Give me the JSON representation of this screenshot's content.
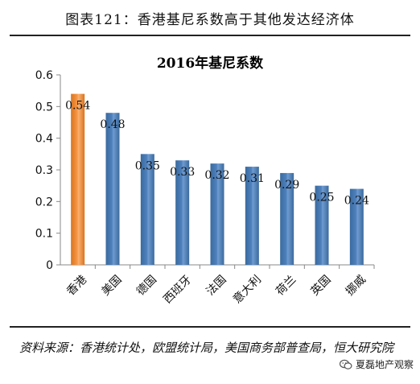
{
  "caption": "图表121：香港基尼系数高于其他发达经济体",
  "source_note": "资料来源：香港统计处，欧盟统计局，美国商务部普查局，恒大研究院",
  "watermark": {
    "text": "夏磊地产观察",
    "icon": "wechat-icon"
  },
  "colors": {
    "highlight": "#f79646",
    "bar": "#4f81bd"
  },
  "chart_data": {
    "type": "bar",
    "title": "2016年基尼系数",
    "categories": [
      "香港",
      "美国",
      "德国",
      "西班牙",
      "法国",
      "意大利",
      "荷兰",
      "英国",
      "挪威"
    ],
    "values": [
      0.54,
      0.48,
      0.35,
      0.33,
      0.32,
      0.31,
      0.29,
      0.25,
      0.24
    ],
    "data_labels": [
      "0.54",
      "0.48",
      "0.35",
      "0.33",
      "0.32",
      "0.31",
      "0.29",
      "0.25",
      "0.24"
    ],
    "highlight_index": 0,
    "ylim": [
      0,
      0.6
    ],
    "yticks": [
      0,
      0.1,
      0.2,
      0.3,
      0.4,
      0.5,
      0.6
    ],
    "ytick_labels": [
      "0",
      "0.1",
      "0.2",
      "0.3",
      "0.4",
      "0.5",
      "0.6"
    ],
    "xlabel": "",
    "ylabel": "",
    "grid": false,
    "legend": "none"
  }
}
